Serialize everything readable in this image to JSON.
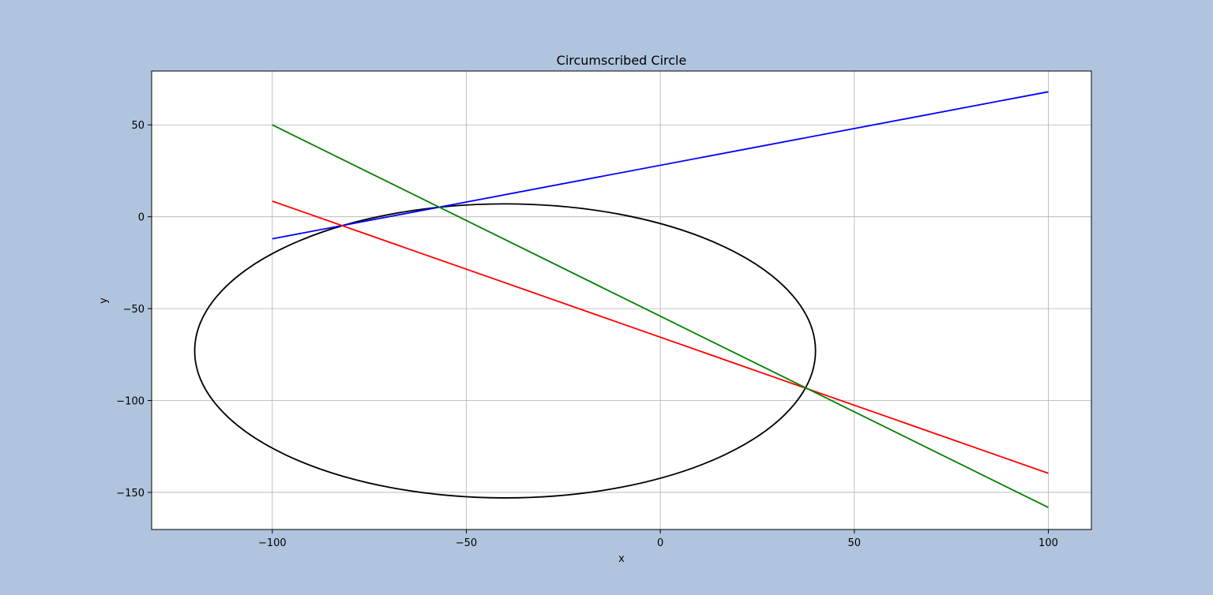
{
  "figure": {
    "background": "#b0c4de"
  },
  "chart_data": {
    "type": "line",
    "title": "Circumscribed Circle",
    "xlabel": "x",
    "ylabel": "y",
    "xlim": [
      -131.1,
      111.1
    ],
    "ylim": [
      -170.2,
      79.3
    ],
    "xticks": [
      -100,
      -50,
      0,
      50,
      100
    ],
    "xtick_labels": [
      "−100",
      "−50",
      "0",
      "50",
      "100"
    ],
    "yticks": [
      50,
      0,
      -50,
      -100,
      -150
    ],
    "ytick_labels": [
      "50",
      "0",
      "−50",
      "−100",
      "−150"
    ],
    "grid": true,
    "series": [
      {
        "color": "#0000ff",
        "x": [
          -100,
          100
        ],
        "y": [
          -12,
          68
        ]
      },
      {
        "color": "#ff0000",
        "x": [
          -100,
          100
        ],
        "y": [
          8.5,
          -139.6
        ]
      },
      {
        "color": "#008000",
        "x": [
          -100,
          100
        ],
        "y": [
          50,
          -158.2
        ]
      }
    ],
    "circle": {
      "color": "#000000",
      "center": [
        -40,
        -73
      ],
      "radius": 80
    }
  }
}
